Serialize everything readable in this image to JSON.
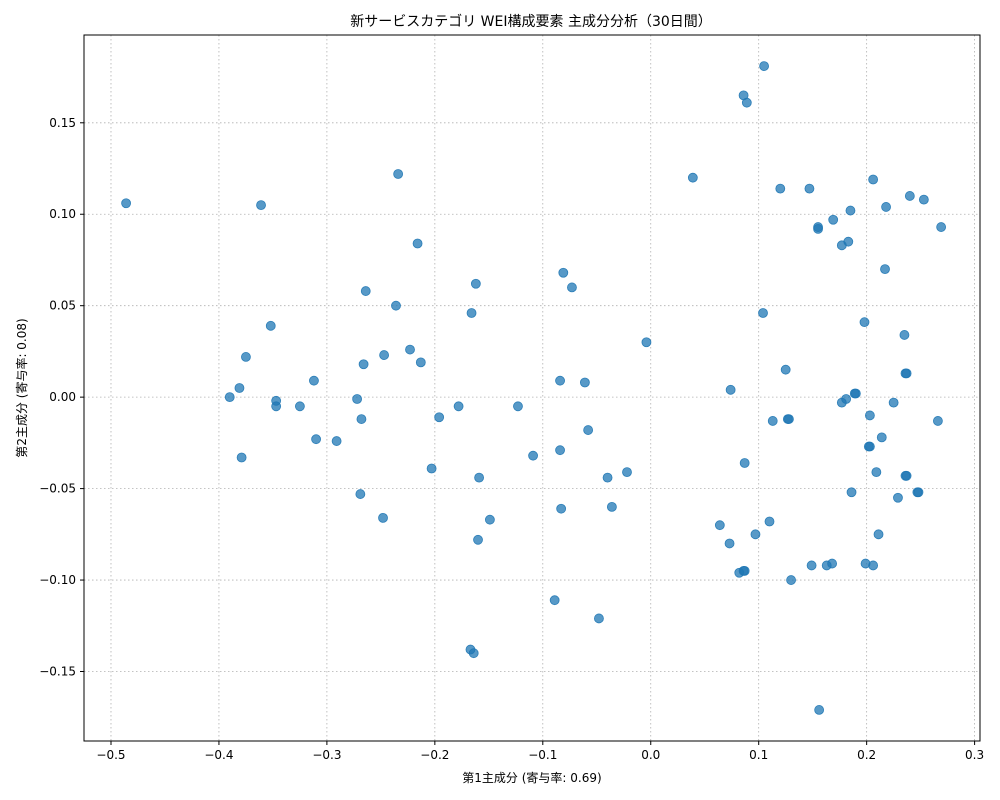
{
  "chart_data": {
    "type": "scatter",
    "title": "新サービスカテゴリ WEI構成要素 主成分分析（30日間）",
    "xlabel": "第1主成分 (寄与率: 0.69)",
    "ylabel": "第2主成分 (寄与率: 0.08)",
    "xlim": [
      -0.525,
      0.305
    ],
    "ylim": [
      -0.188,
      0.198
    ],
    "xticks": [
      -0.5,
      -0.4,
      -0.3,
      -0.2,
      -0.1,
      0.0,
      0.1,
      0.2,
      0.3
    ],
    "xtick_labels": [
      "−0.5",
      "−0.4",
      "−0.3",
      "−0.2",
      "−0.1",
      "0.0",
      "0.1",
      "0.2",
      "0.3"
    ],
    "yticks": [
      -0.15,
      -0.1,
      -0.05,
      0.0,
      0.05,
      0.1,
      0.15
    ],
    "ytick_labels": [
      "−0.15",
      "−0.10",
      "−0.05",
      "0.00",
      "0.05",
      "0.10",
      "0.15"
    ],
    "grid": true,
    "color": "#1f77b4",
    "points": [
      [
        -0.486,
        0.106
      ],
      [
        -0.361,
        0.105
      ],
      [
        -0.234,
        0.122
      ],
      [
        -0.216,
        0.084
      ],
      [
        -0.162,
        0.062
      ],
      [
        -0.166,
        0.046
      ],
      [
        -0.264,
        0.058
      ],
      [
        -0.236,
        0.05
      ],
      [
        -0.352,
        0.039
      ],
      [
        -0.375,
        0.022
      ],
      [
        -0.247,
        0.023
      ],
      [
        -0.223,
        0.026
      ],
      [
        -0.266,
        0.018
      ],
      [
        -0.213,
        0.019
      ],
      [
        -0.312,
        0.009
      ],
      [
        -0.381,
        0.005
      ],
      [
        -0.39,
        0.0
      ],
      [
        -0.347,
        -0.002
      ],
      [
        -0.347,
        -0.005
      ],
      [
        -0.325,
        -0.005
      ],
      [
        -0.272,
        -0.001
      ],
      [
        -0.268,
        -0.012
      ],
      [
        -0.178,
        -0.005
      ],
      [
        -0.196,
        -0.011
      ],
      [
        -0.123,
        -0.005
      ],
      [
        -0.31,
        -0.023
      ],
      [
        -0.291,
        -0.024
      ],
      [
        -0.379,
        -0.033
      ],
      [
        -0.203,
        -0.039
      ],
      [
        -0.109,
        -0.032
      ],
      [
        -0.269,
        -0.053
      ],
      [
        -0.159,
        -0.044
      ],
      [
        -0.248,
        -0.066
      ],
      [
        -0.149,
        -0.067
      ],
      [
        -0.16,
        -0.078
      ],
      [
        -0.167,
        -0.138
      ],
      [
        -0.164,
        -0.14
      ],
      [
        -0.089,
        -0.111
      ],
      [
        -0.081,
        0.068
      ],
      [
        -0.073,
        0.06
      ],
      [
        -0.084,
        0.009
      ],
      [
        -0.061,
        0.008
      ],
      [
        -0.004,
        0.03
      ],
      [
        -0.058,
        -0.018
      ],
      [
        -0.084,
        -0.029
      ],
      [
        -0.04,
        -0.044
      ],
      [
        -0.022,
        -0.041
      ],
      [
        -0.083,
        -0.061
      ],
      [
        -0.036,
        -0.06
      ],
      [
        -0.048,
        -0.121
      ],
      [
        0.039,
        0.12
      ],
      [
        0.086,
        0.165
      ],
      [
        0.089,
        0.161
      ],
      [
        0.105,
        0.181
      ],
      [
        0.12,
        0.114
      ],
      [
        0.147,
        0.114
      ],
      [
        0.206,
        0.119
      ],
      [
        0.155,
        0.093
      ],
      [
        0.155,
        0.092
      ],
      [
        0.169,
        0.097
      ],
      [
        0.185,
        0.102
      ],
      [
        0.177,
        0.083
      ],
      [
        0.183,
        0.085
      ],
      [
        0.218,
        0.104
      ],
      [
        0.24,
        0.11
      ],
      [
        0.253,
        0.108
      ],
      [
        0.269,
        0.093
      ],
      [
        0.217,
        0.07
      ],
      [
        0.104,
        0.046
      ],
      [
        0.198,
        0.041
      ],
      [
        0.235,
        0.034
      ],
      [
        0.125,
        0.015
      ],
      [
        0.236,
        0.013
      ],
      [
        0.237,
        0.013
      ],
      [
        0.074,
        0.004
      ],
      [
        0.189,
        0.002
      ],
      [
        0.19,
        0.002
      ],
      [
        0.177,
        -0.003
      ],
      [
        0.181,
        -0.001
      ],
      [
        0.225,
        -0.003
      ],
      [
        0.203,
        -0.01
      ],
      [
        0.113,
        -0.013
      ],
      [
        0.127,
        -0.012
      ],
      [
        0.128,
        -0.012
      ],
      [
        0.266,
        -0.013
      ],
      [
        0.214,
        -0.022
      ],
      [
        0.202,
        -0.027
      ],
      [
        0.203,
        -0.027
      ],
      [
        0.087,
        -0.036
      ],
      [
        0.209,
        -0.041
      ],
      [
        0.236,
        -0.043
      ],
      [
        0.237,
        -0.043
      ],
      [
        0.186,
        -0.052
      ],
      [
        0.247,
        -0.052
      ],
      [
        0.248,
        -0.052
      ],
      [
        0.229,
        -0.055
      ],
      [
        0.064,
        -0.07
      ],
      [
        0.11,
        -0.068
      ],
      [
        0.097,
        -0.075
      ],
      [
        0.211,
        -0.075
      ],
      [
        0.073,
        -0.08
      ],
      [
        0.082,
        -0.096
      ],
      [
        0.086,
        -0.095
      ],
      [
        0.087,
        -0.095
      ],
      [
        0.149,
        -0.092
      ],
      [
        0.163,
        -0.092
      ],
      [
        0.168,
        -0.091
      ],
      [
        0.199,
        -0.091
      ],
      [
        0.206,
        -0.092
      ],
      [
        0.13,
        -0.1
      ],
      [
        0.156,
        -0.171
      ]
    ]
  }
}
